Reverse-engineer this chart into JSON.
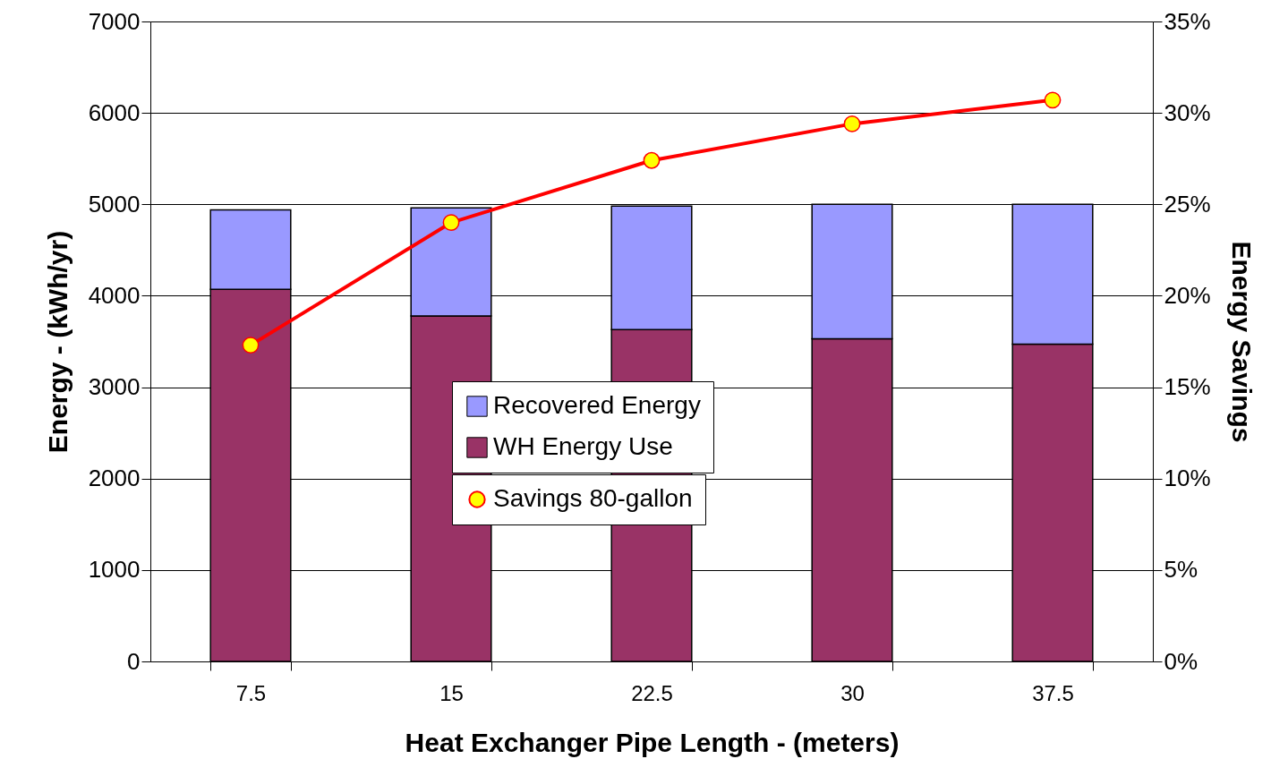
{
  "chart_data": {
    "type": "bar",
    "stacked": true,
    "categories": [
      "7.5",
      "15",
      "22.5",
      "30",
      "37.5"
    ],
    "xlabel": "Heat Exchanger Pipe Length - (meters)",
    "ylabel": "Energy - (kWh/yr)",
    "y2label": "Energy Savings",
    "series": [
      {
        "name": "WH Energy Use",
        "color": "#993366",
        "values": [
          4070,
          3780,
          3630,
          3530,
          3470
        ]
      },
      {
        "name": "Recovered Energy",
        "color": "#9999ff",
        "values": [
          870,
          1180,
          1350,
          1470,
          1530
        ]
      },
      {
        "name": "Savings 80-gallon",
        "type": "line",
        "axis": "y2",
        "color": "#ff0000",
        "values": [
          17.3,
          24.0,
          27.4,
          29.4,
          30.7
        ]
      }
    ],
    "ylim": [
      0,
      7000
    ],
    "yticks": [
      0,
      1000,
      2000,
      3000,
      4000,
      5000,
      6000,
      7000
    ],
    "y2lim": [
      0,
      35
    ],
    "y2ticks": [
      {
        "value": 0,
        "label": "0%"
      },
      {
        "value": 5,
        "label": "5%"
      },
      {
        "value": 10,
        "label": "10%"
      },
      {
        "value": 15,
        "label": "15%"
      },
      {
        "value": 20,
        "label": "20%"
      },
      {
        "value": 25,
        "label": "25%"
      },
      {
        "value": 30,
        "label": "30%"
      },
      {
        "value": 35,
        "label": "35%"
      }
    ],
    "grid": "y",
    "legend": "center",
    "marker": "circle",
    "line_style": "solid"
  }
}
